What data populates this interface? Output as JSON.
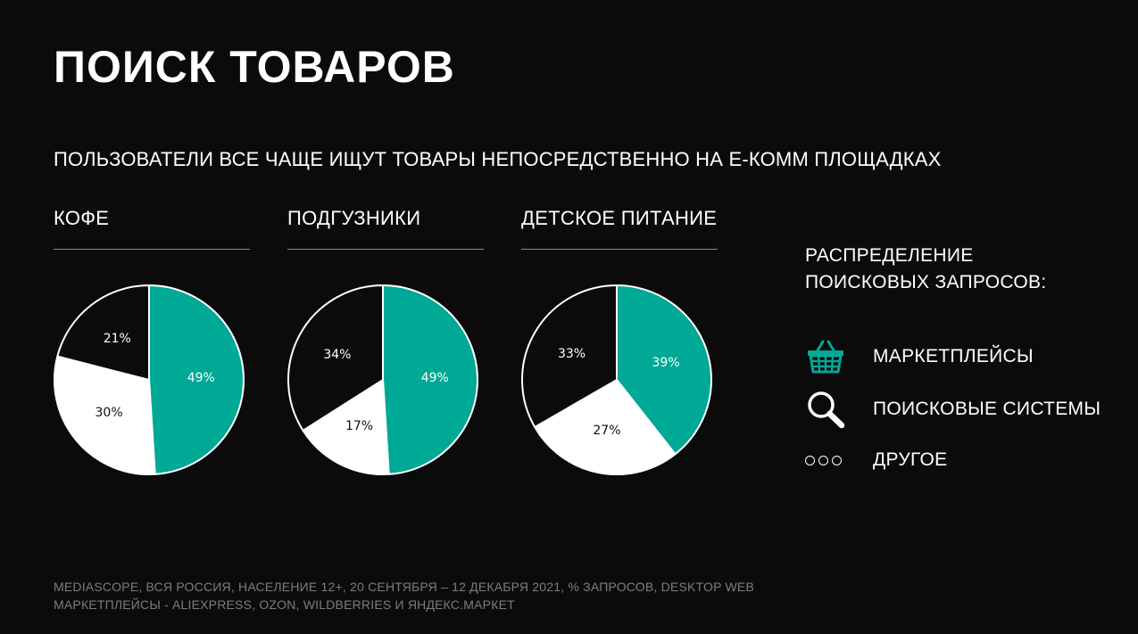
{
  "header": {
    "title": "ПОИСК ТОВАРОВ",
    "subtitle": "ПОЛЬЗОВАТЕЛИ ВСЕ ЧАЩЕ ИЩУТ ТОВАРЫ НЕПОСРЕДСТВЕННО НА Е-КОММ ПЛОЩАДКАХ"
  },
  "colors": {
    "marketplaces": "#00a896",
    "search_engines": "#ffffff",
    "other": "#0b0b0b",
    "background": "#0b0b0b"
  },
  "chart_data": [
    {
      "type": "pie",
      "title": "КОФЕ",
      "slices": [
        {
          "name": "МАРКЕТПЛЕЙСЫ",
          "value": 49,
          "label": "49%"
        },
        {
          "name": "ПОИСКОВЫЕ СИСТЕМЫ",
          "value": 30,
          "label": "30%"
        },
        {
          "name": "ДРУГОЕ",
          "value": 21,
          "label": "21%"
        }
      ]
    },
    {
      "type": "pie",
      "title": "ПОДГУЗНИКИ",
      "slices": [
        {
          "name": "МАРКЕТПЛЕЙСЫ",
          "value": 49,
          "label": "49%"
        },
        {
          "name": "ПОИСКОВЫЕ СИСТЕМЫ",
          "value": 17,
          "label": "17%"
        },
        {
          "name": "ДРУГОЕ",
          "value": 34,
          "label": "34%"
        }
      ]
    },
    {
      "type": "pie",
      "title": "ДЕТСКОЕ ПИТАНИЕ",
      "slices": [
        {
          "name": "МАРКЕТПЛЕЙСЫ",
          "value": 39,
          "label": "39%"
        },
        {
          "name": "ПОИСКОВЫЕ СИСТЕМЫ",
          "value": 27,
          "label": "27%"
        },
        {
          "name": "ДРУГОЕ",
          "value": 33,
          "label": "33%"
        }
      ]
    }
  ],
  "legend": {
    "heading_line1": "РАСПРЕДЕЛЕНИЕ",
    "heading_line2": "ПОИСКОВЫХ ЗАПРОСОВ:",
    "items": [
      {
        "label": "МАРКЕТПЛЕЙСЫ",
        "icon": "basket-icon"
      },
      {
        "label": "ПОИСКОВЫЕ СИСТЕМЫ",
        "icon": "magnifier-icon"
      },
      {
        "label": "ДРУГОЕ",
        "icon": "three-circles-icon"
      }
    ]
  },
  "footnote": {
    "line1": "MEDIASCOPE, ВСЯ РОССИЯ, НАСЕЛЕНИЕ 12+, 20 СЕНТЯБРЯ – 12 ДЕКАБРЯ 2021, % ЗАПРОСОВ, DESKTOP WEB",
    "line2": "МАРКЕТПЛЕЙСЫ - ALIEXPRESS, OZON, WILDBERRIES И ЯНДЕКС.МАРКЕТ"
  }
}
